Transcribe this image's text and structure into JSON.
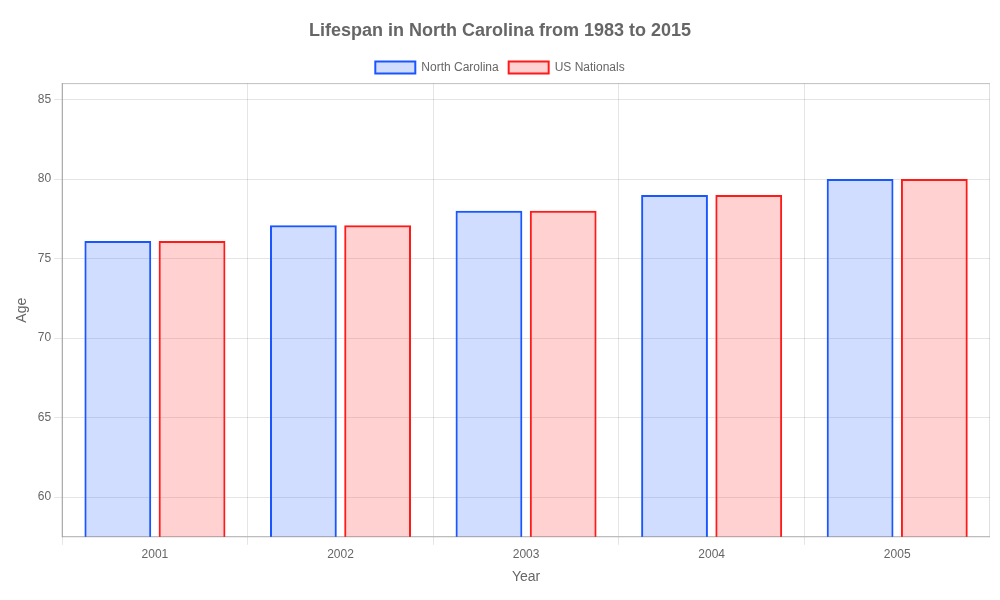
{
  "chart_data": {
    "type": "bar",
    "title": "Lifespan in North Carolina from 1983 to 2015",
    "x_label": "Year",
    "y_label": "Age",
    "categories": [
      "2001",
      "2002",
      "2003",
      "2004",
      "2005"
    ],
    "series": [
      {
        "name": "North Carolina",
        "color": "#1a56ff",
        "values": [
          76.1,
          77.1,
          78.0,
          79.0,
          80.0
        ]
      },
      {
        "name": "US Nationals",
        "color": "#ff1a1a",
        "values": [
          76.1,
          77.1,
          78.0,
          79.0,
          80.0
        ]
      }
    ],
    "ylim": [
      57.5,
      86
    ],
    "yticks": [
      60,
      65,
      70,
      75,
      80,
      85
    ],
    "grid": true,
    "legend": "top"
  }
}
